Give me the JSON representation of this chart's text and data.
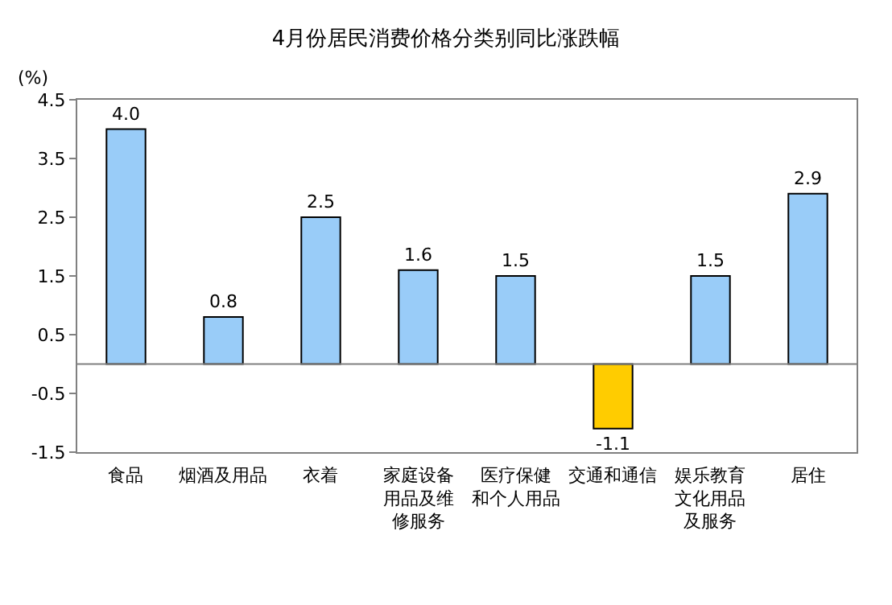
{
  "chart_data": {
    "type": "bar",
    "title": "4月份居民消费价格分类别同比涨跌幅",
    "ylabel": "(%)",
    "categories": [
      "食品",
      "烟酒及用品",
      "衣着",
      "家庭设备用品及维修服务",
      "医疗保健和个人用品",
      "交通和通信",
      "娱乐教育文化用品及服务",
      "居住"
    ],
    "values": [
      4.0,
      0.8,
      2.5,
      1.6,
      1.5,
      -1.1,
      1.5,
      2.9
    ],
    "colors": [
      "#99ccf8",
      "#99ccf8",
      "#99ccf8",
      "#99ccf8",
      "#99ccf8",
      "#ffcc00",
      "#99ccf8",
      "#99ccf8"
    ],
    "ylim": [
      -1.5,
      4.5
    ],
    "yticks": [
      -1.5,
      -0.5,
      0.5,
      1.5,
      2.5,
      3.5,
      4.5
    ],
    "ref_lines": [
      {
        "axis": "y",
        "value": 0,
        "color": "#808080"
      }
    ],
    "value_labels": [
      "4.0",
      "0.8",
      "2.5",
      "1.6",
      "1.5",
      "-1.1",
      "1.5",
      "2.9"
    ],
    "data_labels": true
  }
}
